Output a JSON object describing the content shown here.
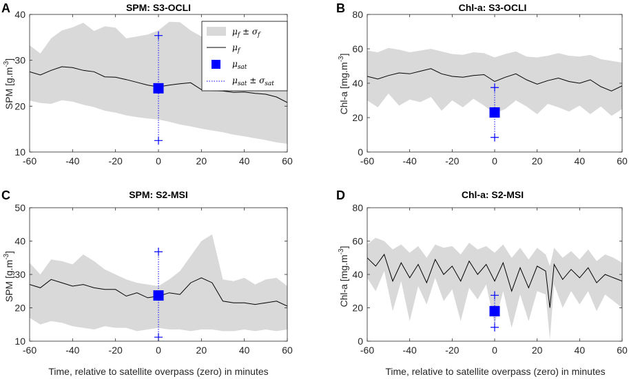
{
  "figure": {
    "xlabel": "Time, relative to satellite overpass (zero) in minutes",
    "legend": {
      "band": "μf ± σf",
      "line": "μf",
      "marker": "μsat",
      "errorbar": "μsat ± σsat"
    }
  },
  "colors": {
    "band": "#d9d9d9",
    "line": "#000000",
    "sat": "#0000ff"
  },
  "chart_data": [
    {
      "panel": "A",
      "type": "area",
      "title": "SPM: S3-OCLI",
      "ylabel": "SPM [g.m-3]",
      "ylabel_main": "SPM [g.m",
      "ylabel_sup": "-3",
      "ylabel_end": "]",
      "xlim": [
        -60,
        60
      ],
      "ylim": [
        10,
        40
      ],
      "xticks": [
        -60,
        -40,
        -20,
        0,
        20,
        40,
        60
      ],
      "yticks": [
        10,
        20,
        30,
        40
      ],
      "mean": {
        "x": [
          -60,
          -55,
          -50,
          -45,
          -40,
          -35,
          -30,
          -25,
          -20,
          -15,
          -10,
          -5,
          0,
          5,
          10,
          15,
          20,
          25,
          30,
          35,
          40,
          45,
          50,
          55,
          60
        ],
        "y": [
          27.5,
          26.8,
          27.8,
          28.6,
          28.4,
          27.8,
          27.5,
          26.4,
          26.3,
          25.8,
          25.2,
          24.6,
          24.2,
          24.6,
          24.9,
          25.1,
          23.6,
          23.4,
          23.3,
          23.0,
          23.1,
          22.8,
          22.6,
          22.0,
          20.8
        ]
      },
      "upper": [
        33.3,
        31.5,
        34.8,
        36.5,
        37.2,
        38.2,
        36.4,
        37.4,
        37.1,
        34.8,
        35.2,
        35.6,
        36.5,
        38.4,
        38.3,
        36.5,
        35.2,
        33.2,
        34.4,
        34.8,
        33.8,
        33.1,
        32.4,
        31.6,
        31.4
      ],
      "lower": [
        21.2,
        20.7,
        20.5,
        21.3,
        21.0,
        20.3,
        19.8,
        19.0,
        18.6,
        18.0,
        17.6,
        17.3,
        17.1,
        16.6,
        16.0,
        15.6,
        15.1,
        14.7,
        14.3,
        13.8,
        13.4,
        13.0,
        12.6,
        12.1,
        11.8
      ],
      "sat": {
        "x": 0,
        "mean": 23.9,
        "upper": 35.4,
        "lower": 12.5
      },
      "legend_position": "top-right"
    },
    {
      "panel": "B",
      "type": "area",
      "title": "Chl-a: S3-OCLI",
      "ylabel": "Chl-a [mg.m-3]",
      "ylabel_main": "Chl-a [mg.m",
      "ylabel_sup": "-3",
      "ylabel_end": "]",
      "xlim": [
        -60,
        60
      ],
      "ylim": [
        0,
        80
      ],
      "xticks": [
        -60,
        -40,
        -20,
        0,
        20,
        40,
        60
      ],
      "yticks": [
        0,
        20,
        40,
        60,
        80
      ],
      "mean": {
        "x": [
          -60,
          -55,
          -50,
          -45,
          -40,
          -35,
          -30,
          -25,
          -20,
          -15,
          -10,
          -5,
          0,
          5,
          10,
          15,
          20,
          25,
          30,
          35,
          40,
          45,
          50,
          55,
          60
        ],
        "y": [
          44.0,
          42.5,
          44.5,
          46.0,
          45.5,
          47.0,
          48.5,
          45.5,
          44.0,
          43.5,
          44.5,
          45.0,
          41.0,
          43.5,
          45.5,
          42.0,
          39.5,
          41.5,
          43.0,
          41.0,
          40.0,
          42.0,
          38.0,
          35.5,
          38.5
        ]
      },
      "upper": [
        59.0,
        58.0,
        60.5,
        59.5,
        58.0,
        59.0,
        60.0,
        58.5,
        57.0,
        56.5,
        58.0,
        57.5,
        55.0,
        57.0,
        58.5,
        55.5,
        55.0,
        56.0,
        57.5,
        56.0,
        55.5,
        56.5,
        54.0,
        53.0,
        52.0
      ],
      "lower": [
        30.0,
        26.0,
        34.0,
        27.0,
        30.5,
        29.0,
        32.0,
        24.0,
        30.0,
        26.0,
        31.0,
        27.0,
        22.5,
        25.0,
        30.0,
        26.5,
        22.0,
        28.0,
        26.0,
        23.5,
        27.0,
        22.0,
        26.5,
        21.0,
        25.0
      ],
      "sat": {
        "x": 0,
        "mean": 23.0,
        "upper": 37.5,
        "lower": 8.5
      },
      "legend_position": "none"
    },
    {
      "panel": "C",
      "type": "area",
      "title": "SPM: S2-MSI",
      "ylabel": "SPM [g.m-3]",
      "ylabel_main": "SPM [g.m",
      "ylabel_sup": "-3",
      "ylabel_end": "]",
      "xlim": [
        -60,
        60
      ],
      "ylim": [
        10,
        50
      ],
      "xticks": [
        -60,
        -40,
        -20,
        0,
        20,
        40,
        60
      ],
      "yticks": [
        10,
        20,
        30,
        40,
        50
      ],
      "mean": {
        "x": [
          -60,
          -55,
          -50,
          -45,
          -40,
          -35,
          -30,
          -25,
          -20,
          -15,
          -10,
          -5,
          0,
          5,
          10,
          15,
          20,
          25,
          30,
          35,
          40,
          45,
          50,
          55,
          60
        ],
        "y": [
          27.0,
          26.0,
          28.5,
          27.5,
          26.5,
          27.0,
          26.0,
          25.5,
          25.5,
          23.5,
          24.5,
          23.0,
          23.5,
          24.5,
          24.0,
          27.5,
          29.0,
          27.5,
          22.0,
          21.5,
          21.5,
          21.0,
          21.5,
          22.0,
          20.5
        ]
      },
      "upper": [
        33.5,
        30.0,
        34.5,
        34.0,
        33.0,
        36.0,
        34.0,
        31.5,
        30.0,
        28.5,
        27.5,
        27.0,
        26.5,
        28.5,
        31.0,
        35.5,
        40.0,
        42.0,
        28.5,
        28.0,
        29.0,
        27.0,
        28.5,
        29.0,
        26.5
      ],
      "lower": [
        17.0,
        15.0,
        16.0,
        15.5,
        14.5,
        14.0,
        13.5,
        14.5,
        14.0,
        14.0,
        13.0,
        13.5,
        14.0,
        13.5,
        13.5,
        13.0,
        13.5,
        13.5,
        13.0,
        13.0,
        13.5,
        13.0,
        13.5,
        13.0,
        13.5
      ],
      "sat": {
        "x": 0,
        "mean": 23.7,
        "upper": 36.8,
        "lower": 11.2
      },
      "legend_position": "none"
    },
    {
      "panel": "D",
      "type": "area",
      "title": "Chl-a: S2-MSI",
      "ylabel": "Chl-a [mg.m-3]",
      "ylabel_main": "Chl-a [mg.m",
      "ylabel_sup": "-3",
      "ylabel_end": "]",
      "xlim": [
        -60,
        60
      ],
      "ylim": [
        0,
        80
      ],
      "xticks": [
        -60,
        -40,
        -20,
        0,
        20,
        40,
        60
      ],
      "yticks": [
        0,
        20,
        40,
        60,
        80
      ],
      "mean": {
        "x": [
          -60,
          -56,
          -52,
          -48,
          -44,
          -40,
          -36,
          -32,
          -28,
          -24,
          -20,
          -16,
          -12,
          -8,
          -4,
          0,
          4,
          8,
          12,
          16,
          20,
          24,
          26,
          28,
          32,
          36,
          40,
          44,
          48,
          52,
          56,
          60
        ],
        "y": [
          50.0,
          45.0,
          52.0,
          36.0,
          47.0,
          38.0,
          46.0,
          35.0,
          49.0,
          40.0,
          45.0,
          36.0,
          48.0,
          40.0,
          46.0,
          36.0,
          47.0,
          30.0,
          44.0,
          32.0,
          45.0,
          42.0,
          20.0,
          46.0,
          37.0,
          43.0,
          38.0,
          44.0,
          35.0,
          40.0,
          38.0,
          36.0
        ]
      },
      "upper": [
        58.0,
        62.0,
        60.0,
        55.0,
        58.0,
        53.0,
        57.0,
        50.0,
        58.0,
        56.0,
        57.0,
        52.0,
        59.0,
        55.0,
        57.0,
        53.0,
        58.0,
        50.0,
        56.0,
        49.0,
        56.0,
        52.0,
        45.0,
        56.0,
        50.0,
        54.0,
        49.0,
        55.0,
        48.0,
        52.0,
        50.0,
        47.0
      ],
      "lower": [
        38.0,
        30.0,
        42.0,
        18.0,
        36.0,
        12.0,
        33.0,
        22.0,
        38.0,
        24.0,
        31.0,
        12.0,
        32.0,
        25.0,
        34.0,
        10.0,
        30.0,
        8.0,
        28.0,
        12.0,
        30.0,
        28.0,
        1.0,
        34.0,
        20.0,
        30.0,
        22.0,
        30.0,
        18.0,
        28.0,
        24.0,
        20.0
      ],
      "sat": {
        "x": 0,
        "mean": 18.0,
        "upper": 27.5,
        "lower": 8.3
      },
      "legend_position": "none"
    }
  ]
}
